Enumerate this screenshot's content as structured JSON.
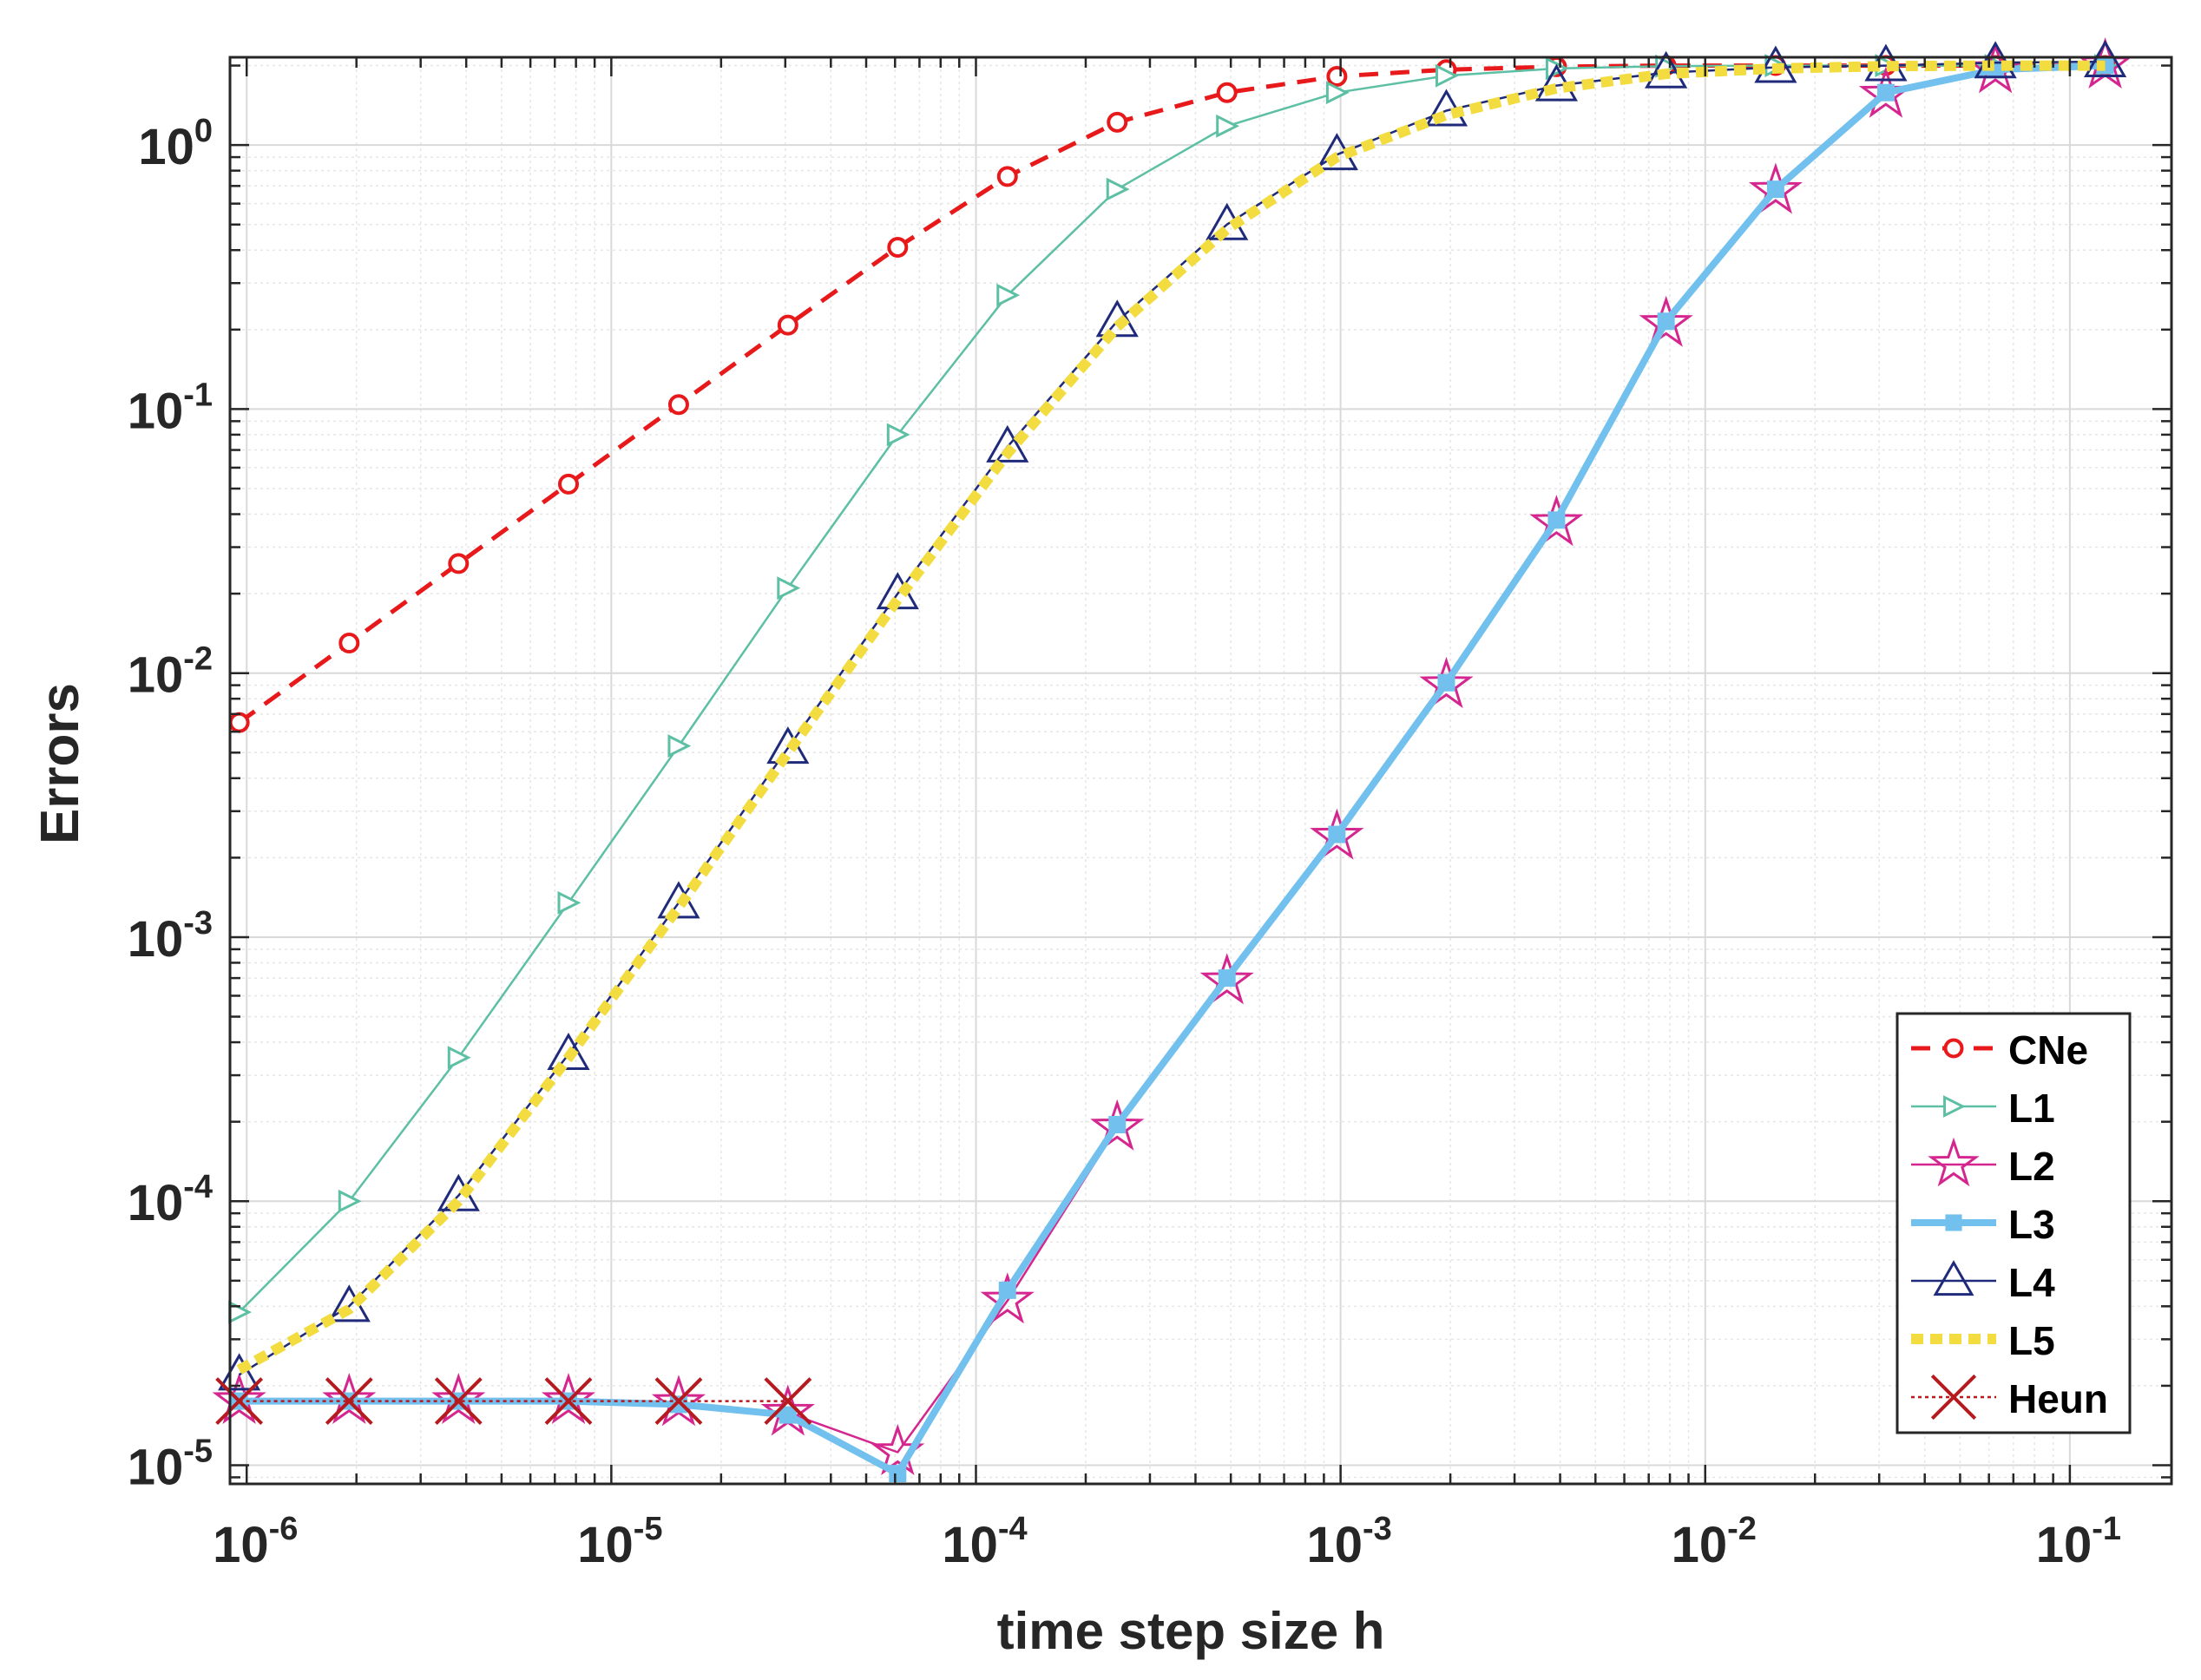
{
  "chart_data": {
    "type": "line",
    "xlabel": "time step size h",
    "ylabel": "Errors",
    "xscale": "log",
    "yscale": "log",
    "xlim": [
      9e-07,
      0.19
    ],
    "ylim": [
      8.5e-06,
      2.15
    ],
    "grid": true,
    "legend_position": "bottom-right",
    "x_ticks": [
      {
        "value": 1e-06,
        "base": "10",
        "exp": "-6"
      },
      {
        "value": 1e-05,
        "base": "10",
        "exp": "-5"
      },
      {
        "value": 0.0001,
        "base": "10",
        "exp": "-4"
      },
      {
        "value": 0.001,
        "base": "10",
        "exp": "-3"
      },
      {
        "value": 0.01,
        "base": "10",
        "exp": "-2"
      },
      {
        "value": 0.1,
        "base": "10",
        "exp": "-1"
      }
    ],
    "y_ticks": [
      {
        "value": 1e-05,
        "base": "10",
        "exp": "-5"
      },
      {
        "value": 0.0001,
        "base": "10",
        "exp": "-4"
      },
      {
        "value": 0.001,
        "base": "10",
        "exp": "-3"
      },
      {
        "value": 0.01,
        "base": "10",
        "exp": "-2"
      },
      {
        "value": 0.1,
        "base": "10",
        "exp": "-1"
      },
      {
        "value": 1,
        "base": "10",
        "exp": "0"
      }
    ],
    "series": [
      {
        "name": "CNe",
        "color": "#e8191b",
        "style": "dashed",
        "marker": "circle",
        "x": [
          9.54e-07,
          1.91e-06,
          3.81e-06,
          7.63e-06,
          1.53e-05,
          3.05e-05,
          6.1e-05,
          0.000122,
          0.000244,
          0.000488,
          0.000977,
          0.00195,
          0.00391,
          0.00781,
          0.0156,
          0.0313,
          0.0625,
          0.125
        ],
        "y": [
          0.0065,
          0.013,
          0.026,
          0.052,
          0.104,
          0.208,
          0.41,
          0.76,
          1.22,
          1.58,
          1.82,
          1.93,
          1.98,
          2.0,
          2.0,
          2.0,
          2.0,
          2.0
        ]
      },
      {
        "name": "L1",
        "color": "#5dbfa3",
        "style": "solid",
        "marker": "triangle-right",
        "x": [
          9.54e-07,
          1.91e-06,
          3.81e-06,
          7.63e-06,
          1.53e-05,
          3.05e-05,
          6.1e-05,
          0.000122,
          0.000244,
          0.000488,
          0.000977,
          0.00195,
          0.00391,
          0.00781,
          0.0156,
          0.0313,
          0.0625,
          0.125
        ],
        "y": [
          3.8e-05,
          0.0001,
          0.00035,
          0.00135,
          0.0053,
          0.021,
          0.08,
          0.27,
          0.68,
          1.18,
          1.58,
          1.83,
          1.95,
          1.99,
          2.0,
          2.0,
          2.0,
          2.0
        ]
      },
      {
        "name": "L2",
        "color": "#d4268e",
        "style": "solid",
        "marker": "star",
        "x": [
          9.54e-07,
          1.91e-06,
          3.81e-06,
          7.63e-06,
          1.53e-05,
          3.05e-05,
          6.1e-05,
          0.000122,
          0.000244,
          0.000488,
          0.000977,
          0.00195,
          0.00391,
          0.00781,
          0.0156,
          0.0313,
          0.0625,
          0.125
        ],
        "y": [
          1.75e-05,
          1.75e-05,
          1.75e-05,
          1.75e-05,
          1.72e-05,
          1.58e-05,
          1.12e-05,
          4.2e-05,
          0.00019,
          0.00068,
          0.0024,
          0.009,
          0.037,
          0.21,
          0.67,
          1.55,
          1.92,
          2.0
        ]
      },
      {
        "name": "L3",
        "color": "#72c0ee",
        "style": "solid-thick",
        "marker": "square",
        "x": [
          9.54e-07,
          1.91e-06,
          3.81e-06,
          7.63e-06,
          1.53e-05,
          3.05e-05,
          6.1e-05,
          0.000122,
          0.000244,
          0.000488,
          0.000977,
          0.00195,
          0.00391,
          0.00781,
          0.0156,
          0.0313,
          0.0625,
          0.125
        ],
        "y": [
          1.75e-05,
          1.75e-05,
          1.75e-05,
          1.75e-05,
          1.7e-05,
          1.55e-05,
          9.3e-06,
          4.6e-05,
          0.000195,
          0.0007,
          0.00245,
          0.0092,
          0.038,
          0.215,
          0.68,
          1.58,
          1.93,
          2.0
        ]
      },
      {
        "name": "L4",
        "color": "#1f2a7a",
        "style": "solid",
        "marker": "triangle-up",
        "x": [
          9.54e-07,
          1.91e-06,
          3.81e-06,
          7.63e-06,
          1.53e-05,
          3.05e-05,
          6.1e-05,
          0.000122,
          0.000244,
          0.000488,
          0.000977,
          0.00195,
          0.00391,
          0.00781,
          0.0156,
          0.0313,
          0.0625,
          0.125
        ],
        "y": [
          2.2e-05,
          4e-05,
          0.000105,
          0.00036,
          0.00135,
          0.0052,
          0.02,
          0.072,
          0.215,
          0.5,
          0.92,
          1.35,
          1.68,
          1.88,
          1.97,
          2.0,
          2.05,
          2.07
        ]
      },
      {
        "name": "L5",
        "color": "#f2dc3f",
        "style": "dotted-thick",
        "marker": "none",
        "x": [
          9.54e-07,
          1.91e-06,
          3.81e-06,
          7.63e-06,
          1.53e-05,
          3.05e-05,
          6.1e-05,
          0.000122,
          0.000244,
          0.000488,
          0.000977,
          0.00195,
          0.00391,
          0.00781,
          0.0156,
          0.0313,
          0.0625,
          0.125
        ],
        "y": [
          2.3e-05,
          3.9e-05,
          0.0001,
          0.00035,
          0.0013,
          0.005,
          0.019,
          0.068,
          0.205,
          0.48,
          0.9,
          1.3,
          1.64,
          1.86,
          1.95,
          1.99,
          2.0,
          2.0
        ]
      },
      {
        "name": "Heun",
        "color": "#b51a1e",
        "style": "dotted",
        "marker": "x",
        "x": [
          9.54e-07,
          1.91e-06,
          3.81e-06,
          7.63e-06,
          1.53e-05,
          3.05e-05
        ],
        "y": [
          1.75e-05,
          1.75e-05,
          1.75e-05,
          1.75e-05,
          1.75e-05,
          1.75e-05
        ]
      }
    ]
  }
}
